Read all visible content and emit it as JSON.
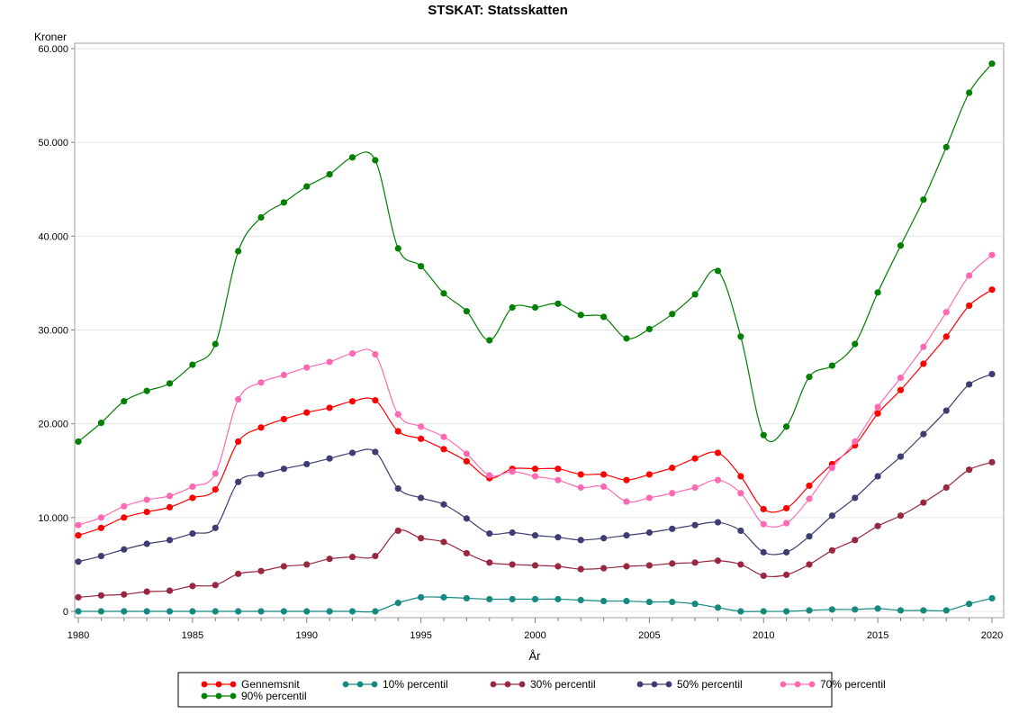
{
  "chart_data": {
    "type": "line",
    "title": "STSKAT:  Statsskatten",
    "xlabel": "År",
    "ylabel": "Kroner",
    "xlim": [
      1980,
      2020
    ],
    "ylim": [
      0,
      60000
    ],
    "xticks": [
      1980,
      1985,
      1990,
      1995,
      2000,
      2005,
      2010,
      2015,
      2020
    ],
    "yticks": [
      0,
      10000,
      20000,
      30000,
      40000,
      50000,
      60000
    ],
    "ytick_labels": [
      "0",
      "10.000",
      "20.000",
      "30.000",
      "40.000",
      "50.000",
      "60.000"
    ],
    "grid": "horizontal",
    "legend_position": "bottom",
    "x": [
      1980,
      1981,
      1982,
      1983,
      1984,
      1985,
      1986,
      1987,
      1988,
      1989,
      1990,
      1991,
      1992,
      1993,
      1994,
      1995,
      1996,
      1997,
      1998,
      1999,
      2000,
      2001,
      2002,
      2003,
      2004,
      2005,
      2006,
      2007,
      2008,
      2009,
      2010,
      2011,
      2012,
      2013,
      2014,
      2015,
      2016,
      2017,
      2018,
      2019,
      2020
    ],
    "series": [
      {
        "name": "Gennemsnit",
        "color": "#ff0000",
        "values": [
          8100,
          8900,
          10000,
          10600,
          11100,
          12100,
          13000,
          18100,
          19600,
          20500,
          21200,
          21700,
          22400,
          22500,
          19200,
          18400,
          17300,
          16000,
          14200,
          15200,
          15200,
          15200,
          14600,
          14600,
          14000,
          14600,
          15300,
          16300,
          16900,
          14400,
          10900,
          11000,
          13400,
          15700,
          17700,
          21100,
          23600,
          26400,
          29300,
          32600,
          34300
        ]
      },
      {
        "name": "10% percentil",
        "color": "#14897f",
        "values": [
          0,
          0,
          0,
          0,
          0,
          0,
          0,
          0,
          0,
          0,
          0,
          0,
          0,
          0,
          900,
          1500,
          1500,
          1400,
          1300,
          1300,
          1300,
          1300,
          1200,
          1100,
          1100,
          1000,
          1000,
          800,
          400,
          0,
          0,
          0,
          100,
          200,
          200,
          300,
          100,
          100,
          100,
          800,
          1400
        ]
      },
      {
        "name": "30% percentil",
        "color": "#98273f",
        "values": [
          1500,
          1700,
          1800,
          2100,
          2200,
          2700,
          2800,
          4000,
          4300,
          4800,
          5000,
          5600,
          5800,
          5900,
          8600,
          7800,
          7400,
          6200,
          5200,
          5000,
          4900,
          4800,
          4500,
          4600,
          4800,
          4900,
          5100,
          5200,
          5400,
          5000,
          3800,
          3900,
          5000,
          6500,
          7600,
          9100,
          10200,
          11600,
          13200,
          15100,
          15900
        ]
      },
      {
        "name": "50% percentil",
        "color": "#3d3c73",
        "values": [
          5300,
          5900,
          6600,
          7200,
          7600,
          8300,
          8900,
          13800,
          14600,
          15200,
          15700,
          16300,
          16900,
          17000,
          13100,
          12100,
          11400,
          9900,
          8300,
          8400,
          8100,
          7900,
          7600,
          7800,
          8100,
          8400,
          8800,
          9200,
          9500,
          8600,
          6300,
          6300,
          8000,
          10200,
          12100,
          14400,
          16500,
          18900,
          21400,
          24200,
          25300
        ]
      },
      {
        "name": "70% percentil",
        "color": "#ff69b4",
        "values": [
          9200,
          10000,
          11200,
          11900,
          12300,
          13300,
          14700,
          22600,
          24400,
          25200,
          26000,
          26600,
          27500,
          27400,
          21000,
          19700,
          18600,
          16800,
          14500,
          14900,
          14400,
          14000,
          13200,
          13300,
          11700,
          12100,
          12600,
          13200,
          14000,
          12600,
          9300,
          9400,
          12000,
          15300,
          18100,
          21800,
          24900,
          28200,
          31900,
          35800,
          38000
        ]
      },
      {
        "name": "90% percentil",
        "color": "#008000",
        "values": [
          18100,
          20100,
          22400,
          23500,
          24300,
          26300,
          28500,
          38400,
          42000,
          43600,
          45300,
          46600,
          48400,
          48100,
          38700,
          36800,
          33900,
          32000,
          28900,
          32400,
          32400,
          32800,
          31600,
          31400,
          29100,
          30100,
          31700,
          33800,
          36300,
          29300,
          18800,
          19700,
          25000,
          26200,
          28500,
          34000,
          39000,
          43900,
          49500,
          55300,
          58400
        ]
      }
    ]
  }
}
